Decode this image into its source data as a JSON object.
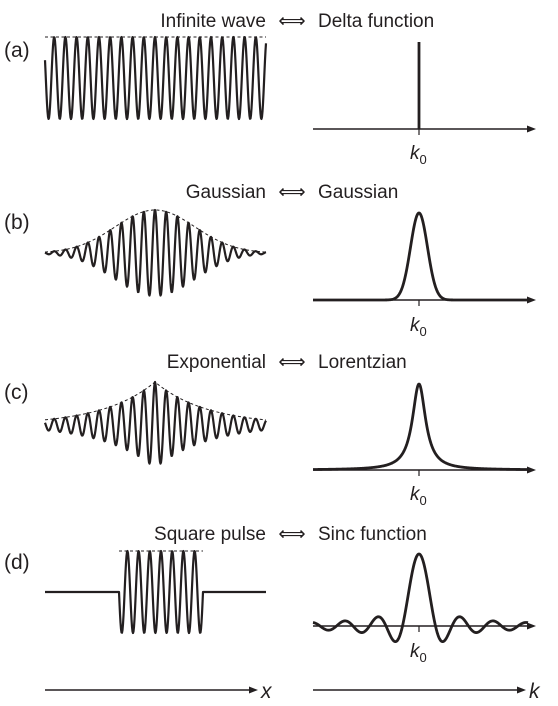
{
  "panels": [
    {
      "label": "(a)",
      "left_title": "Infinite wave",
      "arrow": "⟺",
      "right_title": "Delta function",
      "x_envelope": "constant",
      "k_shape": "delta",
      "k_tick": "k0"
    },
    {
      "label": "(b)",
      "left_title": "Gaussian",
      "arrow": "⟺",
      "right_title": "Gaussian",
      "x_envelope": "gaussian",
      "k_shape": "gaussian",
      "k_tick": "k0"
    },
    {
      "label": "(c)",
      "left_title": "Exponential",
      "arrow": "⟺",
      "right_title": "Lorentzian",
      "x_envelope": "exponential",
      "k_shape": "lorentzian",
      "k_tick": "k0"
    },
    {
      "label": "(d)",
      "left_title": "Square pulse",
      "arrow": "⟺",
      "right_title": "Sinc function",
      "x_envelope": "square",
      "k_shape": "sinc",
      "k_tick": "k0"
    }
  ],
  "axes": {
    "x_label": "x",
    "k_label": "k"
  },
  "colors": {
    "ink": "#231f20",
    "background": "#ffffff"
  }
}
